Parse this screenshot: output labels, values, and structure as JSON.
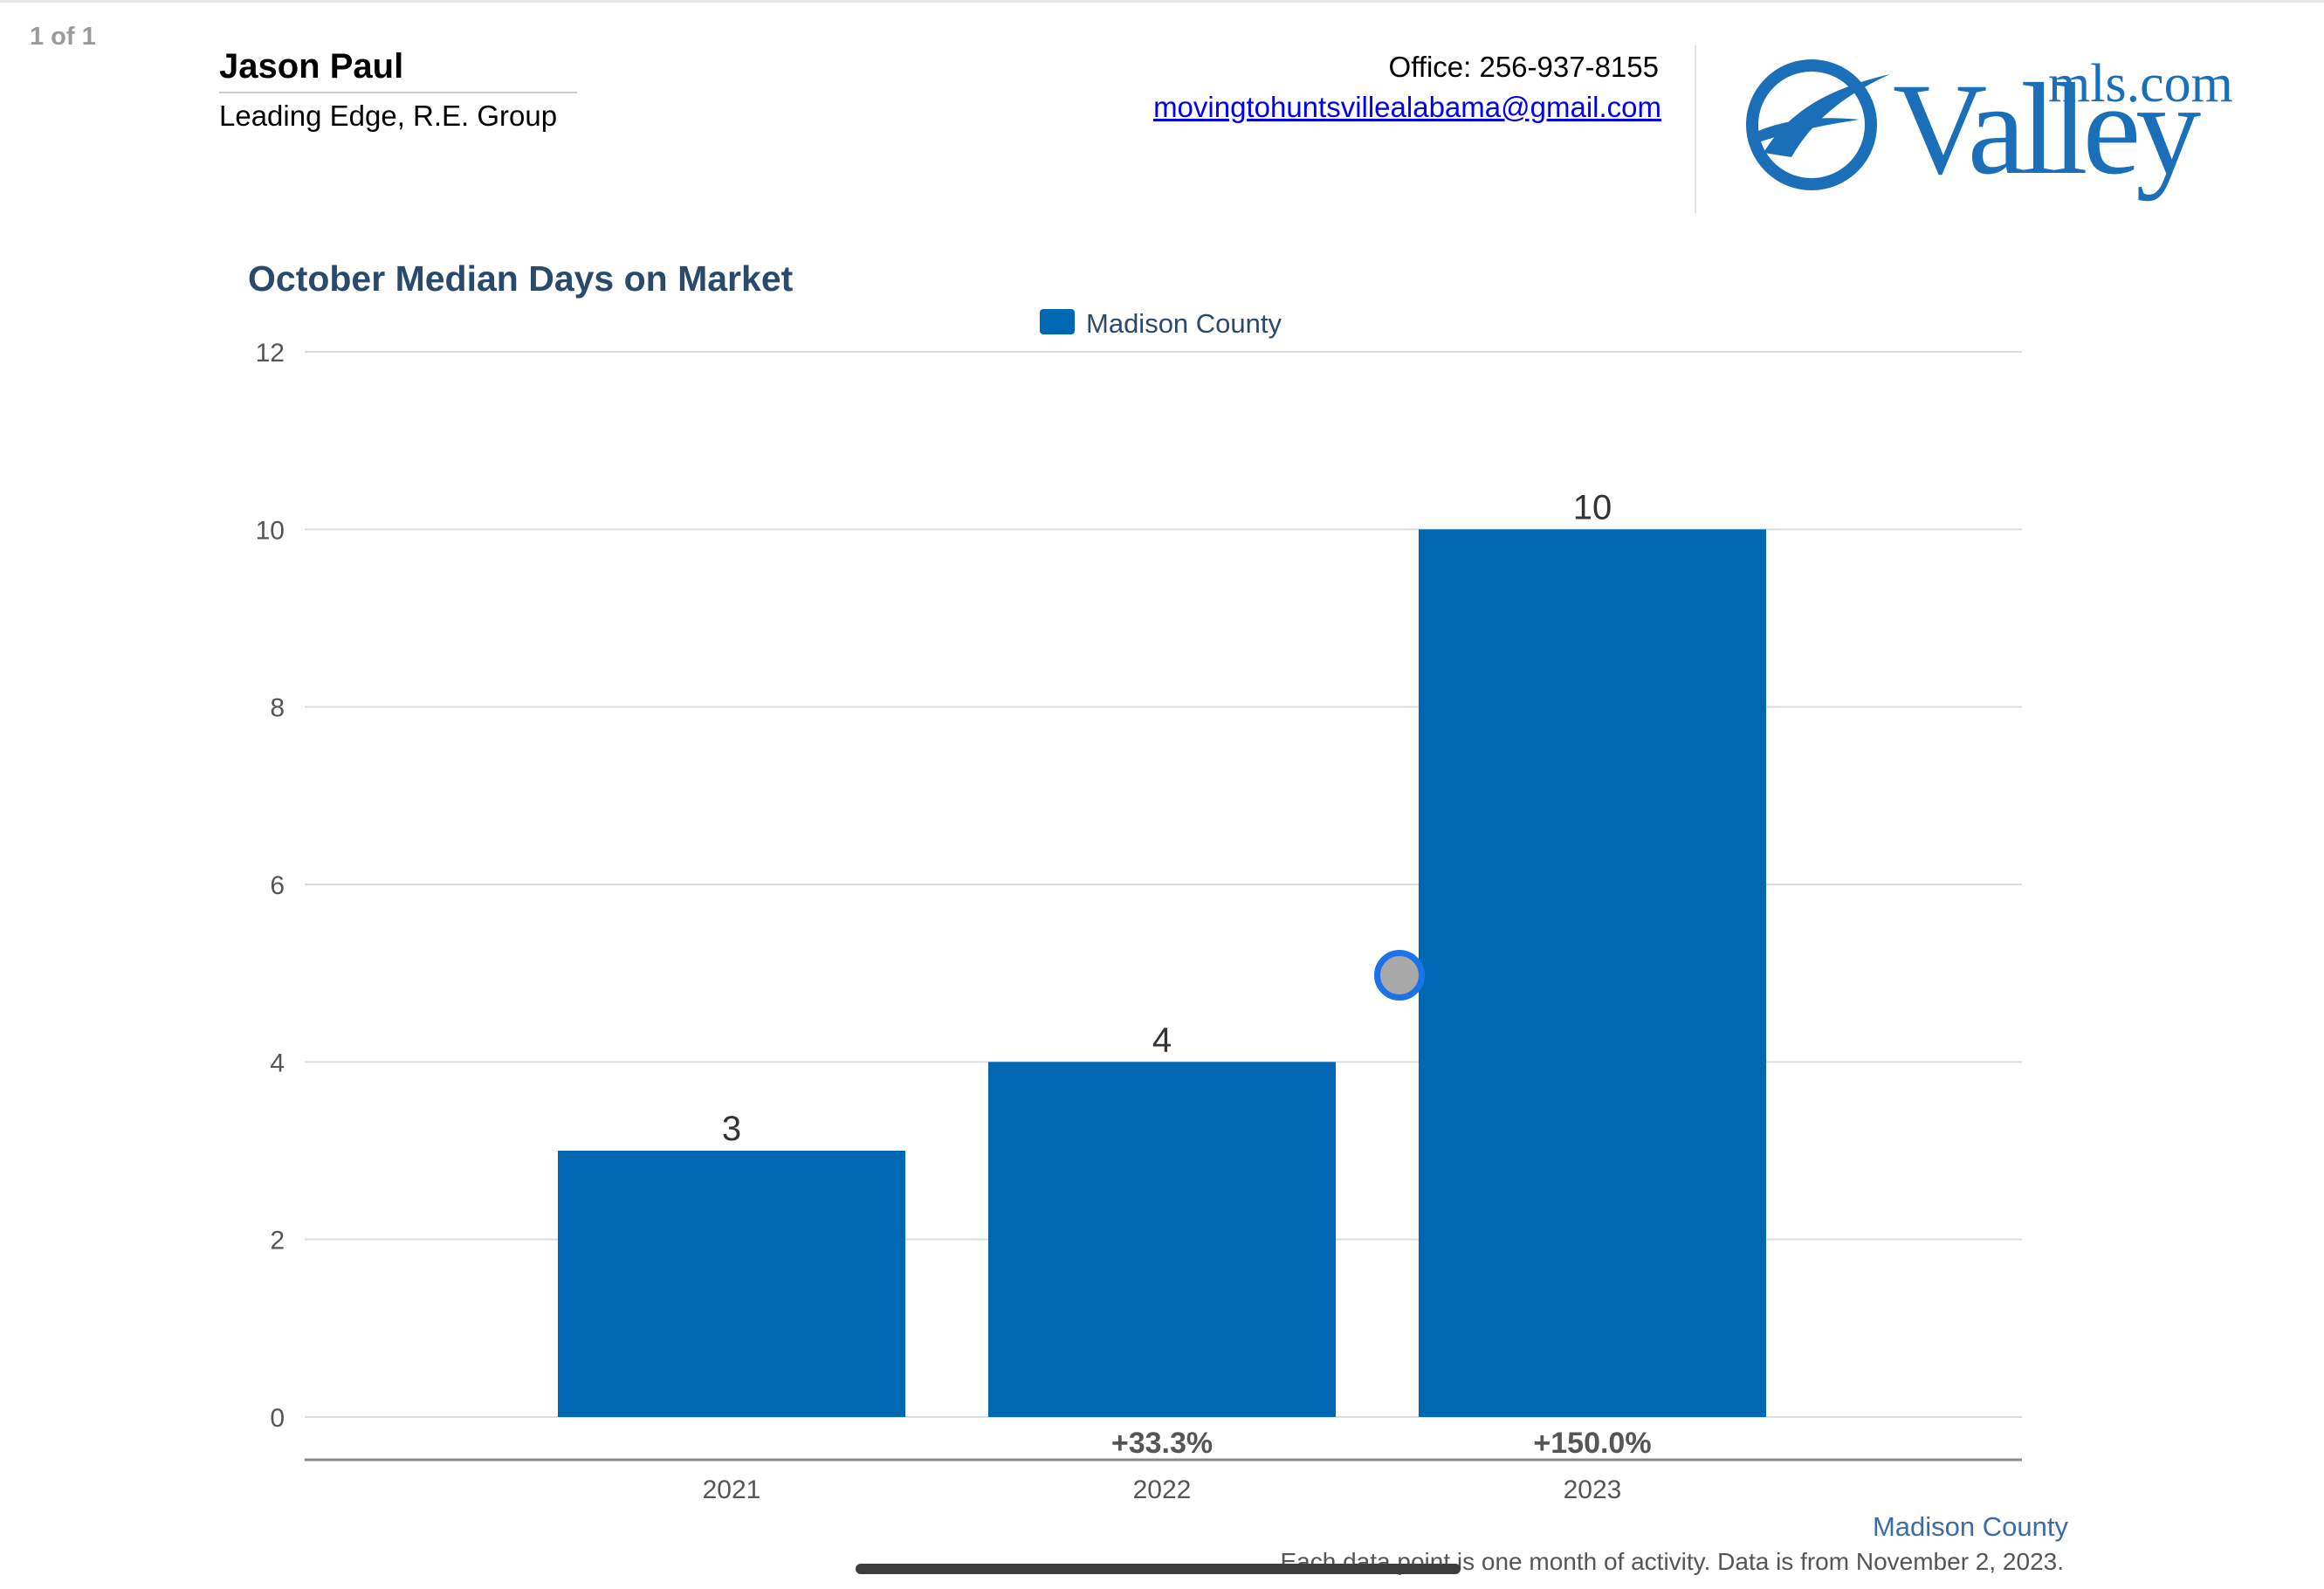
{
  "page_indicator": "1 of 1",
  "agent": {
    "name": "Jason Paul",
    "company": "Leading Edge, R.E. Group"
  },
  "contact": {
    "office": "Office: 256-937-8155",
    "email": "movingtohuntsvillealabama@gmail.com"
  },
  "logo": {
    "word": "Valley",
    "sup": "mls.com",
    "color": "#1a6fb8",
    "icon": "valley-swoosh-icon"
  },
  "footer": {
    "note": "Each data point is one month of activity. Data is from November 2, 2023."
  },
  "chart_data": {
    "type": "bar",
    "title": "October Median Days on Market",
    "categories": [
      "2021",
      "2022",
      "2023"
    ],
    "series": [
      {
        "name": "Madison County",
        "values": [
          3,
          4,
          10
        ],
        "color": "#0068b3"
      }
    ],
    "value_labels": [
      "3",
      "4",
      "10"
    ],
    "change_labels": [
      "",
      "+33.3%",
      "+150.0%"
    ],
    "yticks": [
      0,
      2,
      4,
      6,
      8,
      10,
      12
    ],
    "ylim": [
      0,
      12
    ],
    "grid": true,
    "legend": "top-center",
    "source_label": "Madison County"
  }
}
